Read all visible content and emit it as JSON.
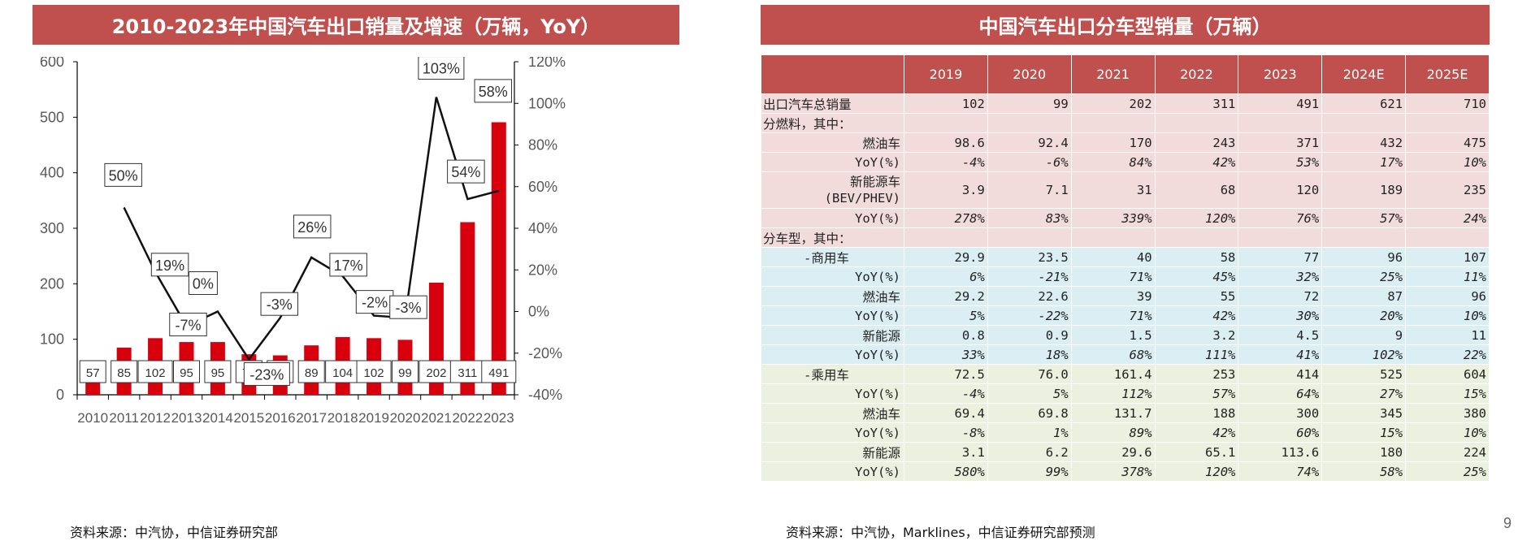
{
  "left_title": "2010-2023年中国汽车出口销量及增速（万辆，YoY）",
  "right_title": "中国汽车出口分车型销量（万辆）",
  "left_source": "资料来源：中汽协，中信证券研究部",
  "right_source": "资料来源：中汽协，Marklines，中信证券研究部预测",
  "page_number": "9",
  "colors": {
    "bar": "#d9000d",
    "line": "#111111",
    "banner": "#c0504d"
  },
  "chart_data": {
    "type": "bar",
    "title": "2010-2023年中国汽车出口销量及增速（万辆，YoY）",
    "categories": [
      "2010",
      "2011",
      "2012",
      "2013",
      "2014",
      "2015",
      "2016",
      "2017",
      "2018",
      "2019",
      "2020",
      "2021",
      "2022",
      "2023"
    ],
    "series": [
      {
        "values": [
          57,
          85,
          102,
          95,
          95,
          73,
          71,
          89,
          104,
          102,
          99,
          202,
          311,
          491
        ],
        "axis": "left",
        "type": "bar"
      },
      {
        "values": [
          null,
          50,
          19,
          -7,
          0,
          -23,
          -3,
          26,
          17,
          -2,
          -3,
          103,
          54,
          58
        ],
        "axis": "right",
        "type": "line"
      }
    ],
    "bar_labels": [
      "57",
      "85",
      "102",
      "95",
      "95",
      "73",
      "71",
      "89",
      "104",
      "102",
      "99",
      "202",
      "311",
      "491"
    ],
    "line_labels": [
      "",
      "50%",
      "19%",
      "-7%",
      "0%",
      "-23%",
      "-3%",
      "26%",
      "17%",
      "-2%",
      "-3%",
      "103%",
      "54%",
      "58%"
    ],
    "ylim_left": [
      0,
      600
    ],
    "ylim_right": [
      -40,
      120
    ],
    "yticks_left": [
      "0",
      "100",
      "200",
      "300",
      "400",
      "500",
      "600"
    ],
    "yticks_right": [
      "-40%",
      "-20%",
      "0%",
      "20%",
      "40%",
      "60%",
      "80%",
      "100%",
      "120%"
    ],
    "grid": false,
    "legend": "none"
  },
  "table": {
    "type": "table",
    "header": [
      "",
      "2019",
      "2020",
      "2021",
      "2022",
      "2023",
      "2024E",
      "2025E"
    ],
    "rows": [
      {
        "label": "出口汽车总销量",
        "values": [
          "102",
          "99",
          "202",
          "311",
          "491",
          "621",
          "710"
        ]
      },
      {
        "label": "分燃料，其中：",
        "values": [
          "",
          "",
          "",
          "",
          "",
          "",
          ""
        ]
      },
      {
        "label": "燃油车",
        "values": [
          "98.6",
          "92.4",
          "170",
          "243",
          "371",
          "432",
          "475"
        ]
      },
      {
        "label": "YoY(%)",
        "values": [
          "-4%",
          "-6%",
          "84%",
          "42%",
          "53%",
          "17%",
          "10%"
        ]
      },
      {
        "label": "新能源车",
        "label2": "(BEV/PHEV)",
        "values": [
          "3.9",
          "7.1",
          "31",
          "68",
          "120",
          "189",
          "235"
        ]
      },
      {
        "label": "YoY(%)",
        "values": [
          "278%",
          "83%",
          "339%",
          "120%",
          "76%",
          "57%",
          "24%"
        ]
      },
      {
        "label": "分车型，其中：",
        "values": [
          "",
          "",
          "",
          "",
          "",
          "",
          ""
        ]
      },
      {
        "label": "-商用车",
        "values": [
          "29.9",
          "23.5",
          "40",
          "58",
          "77",
          "96",
          "107"
        ]
      },
      {
        "label": "YoY(%)",
        "values": [
          "6%",
          "-21%",
          "71%",
          "45%",
          "32%",
          "25%",
          "11%"
        ]
      },
      {
        "label": "燃油车",
        "values": [
          "29.2",
          "22.6",
          "39",
          "55",
          "72",
          "87",
          "96"
        ]
      },
      {
        "label": "YoY(%)",
        "values": [
          "5%",
          "-22%",
          "71%",
          "42%",
          "30%",
          "20%",
          "10%"
        ]
      },
      {
        "label": "新能源",
        "values": [
          "0.8",
          "0.9",
          "1.5",
          "3.2",
          "4.5",
          "9",
          "11"
        ]
      },
      {
        "label": "YoY(%)",
        "values": [
          "33%",
          "18%",
          "68%",
          "111%",
          "41%",
          "102%",
          "22%"
        ]
      },
      {
        "label": "-乘用车",
        "values": [
          "72.5",
          "76.0",
          "161.4",
          "253",
          "414",
          "525",
          "604"
        ]
      },
      {
        "label": "YoY(%)",
        "values": [
          "-4%",
          "5%",
          "112%",
          "57%",
          "64%",
          "27%",
          "15%"
        ]
      },
      {
        "label": "燃油车",
        "values": [
          "69.4",
          "69.8",
          "131.7",
          "188",
          "300",
          "345",
          "380"
        ]
      },
      {
        "label": "YoY(%)",
        "values": [
          "-8%",
          "1%",
          "89%",
          "42%",
          "60%",
          "15%",
          "10%"
        ]
      },
      {
        "label": "新能源",
        "values": [
          "3.1",
          "6.2",
          "29.6",
          "65.1",
          "113.6",
          "180",
          "224"
        ]
      },
      {
        "label": "YoY(%)",
        "values": [
          "580%",
          "99%",
          "378%",
          "120%",
          "74%",
          "58%",
          "25%"
        ]
      }
    ]
  }
}
